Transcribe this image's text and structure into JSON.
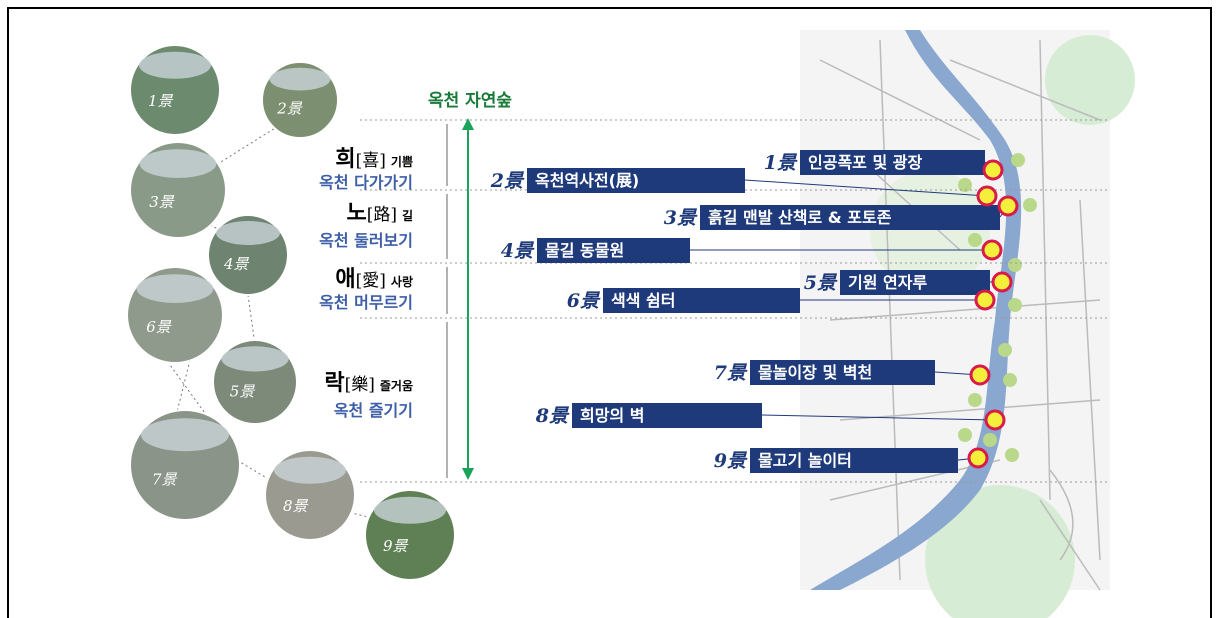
{
  "title": "옥천 자연숲",
  "photos": [
    "1景",
    "2景",
    "3景",
    "4景",
    "5景",
    "6景",
    "7景",
    "8景",
    "9景"
  ],
  "themes": [
    {
      "char": "희",
      "hanja": "[喜]",
      "word": "기쁨",
      "subtitle": "옥천 다가가기"
    },
    {
      "char": "노",
      "hanja": "[路]",
      "word": "길",
      "subtitle": "옥천 둘러보기"
    },
    {
      "char": "애",
      "hanja": "[愛]",
      "word": "사랑",
      "subtitle": "옥천 머무르기"
    },
    {
      "char": "락",
      "hanja": "[樂]",
      "word": "즐거움",
      "subtitle": "옥천 즐기기"
    }
  ],
  "scenes": [
    {
      "number": "1景",
      "name": "인공폭포 및 광장"
    },
    {
      "number": "2景",
      "name": "옥천역사전(展)"
    },
    {
      "number": "3景",
      "name": "흙길 맨발 산책로 & 포토존"
    },
    {
      "number": "4景",
      "name": "물길 동물원"
    },
    {
      "number": "5景",
      "name": "기원 연자루"
    },
    {
      "number": "6景",
      "name": "색색 쉼터"
    },
    {
      "number": "7景",
      "name": "물놀이장 및 벽천"
    },
    {
      "number": "8景",
      "name": "희망의 벽"
    },
    {
      "number": "9景",
      "name": "물고기 놀이터"
    }
  ]
}
